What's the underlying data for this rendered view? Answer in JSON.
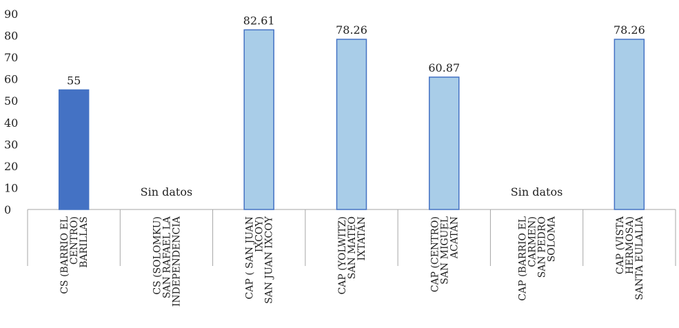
{
  "chart_data": {
    "type": "bar",
    "title": "",
    "xlabel": "",
    "ylabel": "",
    "ylim": [
      0,
      90
    ],
    "yticks": [
      0,
      10,
      20,
      30,
      40,
      50,
      60,
      70,
      80,
      90
    ],
    "grid": false,
    "categories": [
      {
        "line1": "CS (BARRIO EL",
        "line2": "CENTRO)",
        "line3": "BARILLAS"
      },
      {
        "line1": "CS (SOLOMKU)",
        "line2": "SAN RAFAEL LA",
        "line3": "INDEPENDENCIA"
      },
      {
        "line1": "CAP ( SAN JUAN",
        "line2": "IXCOY)",
        "line3": "SAN JUAN IXCOY"
      },
      {
        "line1": "CAP (YOLWITZ)",
        "line2": "SAN MATEO",
        "line3": "IXTATÁN"
      },
      {
        "line1": "CAP (CENTRO)",
        "line2": "SAN MIGUEL",
        "line3": "ACATÁN"
      },
      {
        "line1": "CAP (BARRIO EL",
        "line2": "CARMEN)",
        "line3": "SAN PEDRO",
        "line4": "SOLOMA"
      },
      {
        "line1": "CAP (VISTA",
        "line2": "HERMOSA)",
        "line3": "SANTA EULALIA"
      }
    ],
    "values": [
      55,
      null,
      82.61,
      78.26,
      60.87,
      null,
      78.26
    ],
    "data_labels": [
      "55",
      "Sin datos",
      "82.61",
      "78.26",
      "60.87",
      "Sin datos",
      "78.26"
    ],
    "bar_colors": [
      "#4472c4",
      null,
      "#a9cde8",
      "#a9cde8",
      "#a9cde8",
      null,
      "#a9cde8"
    ],
    "bar_stroke": "#4472c4",
    "axis_color": "#a6a6a6"
  }
}
